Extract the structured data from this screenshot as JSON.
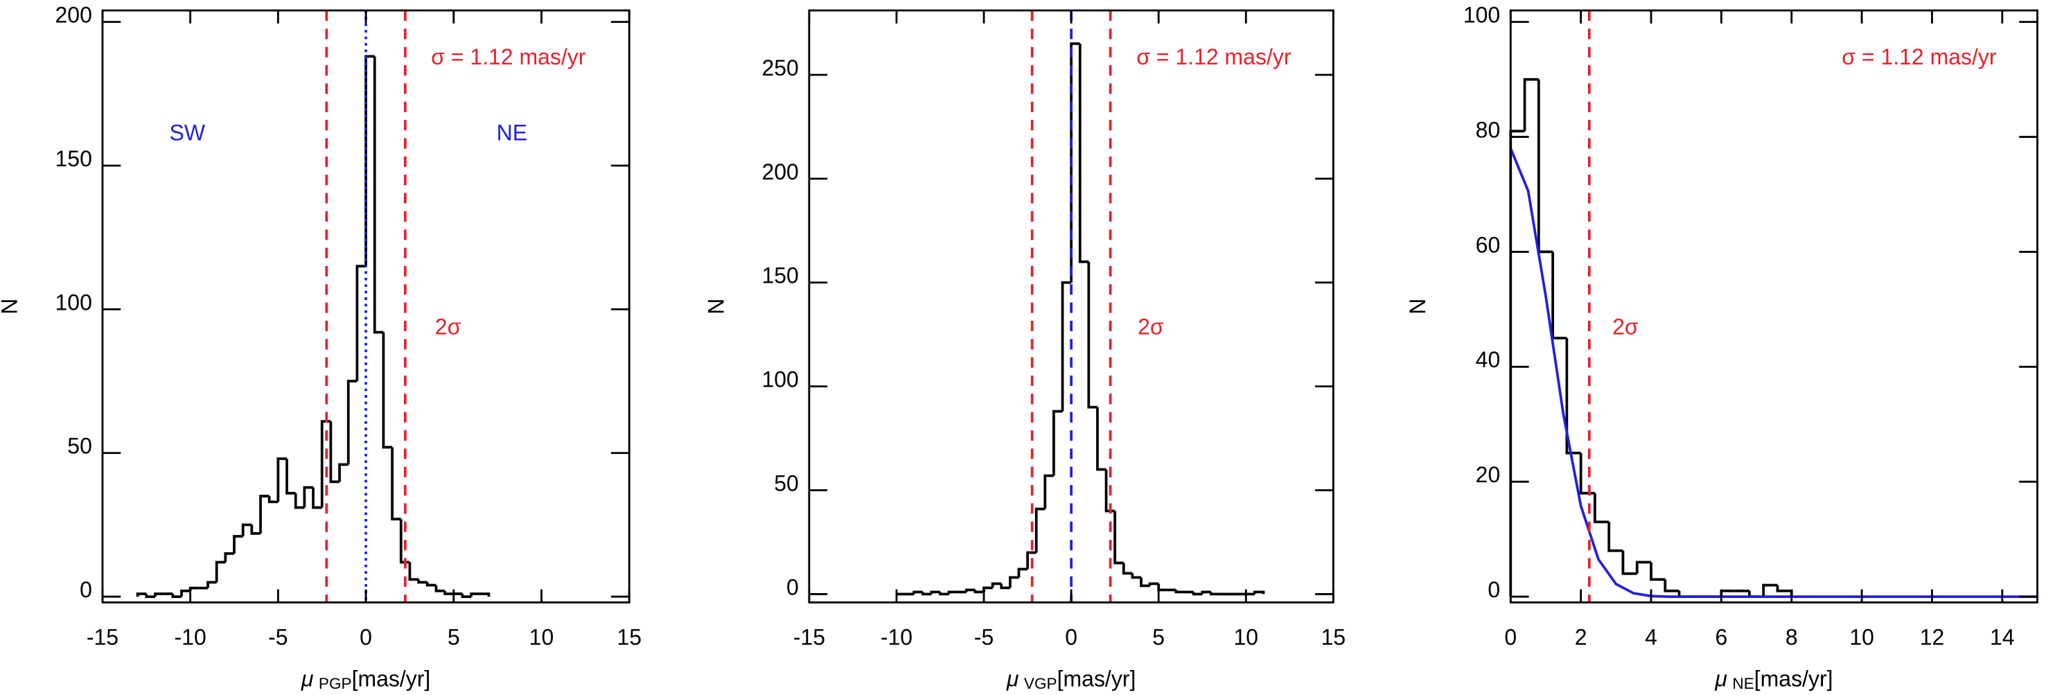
{
  "chart_data": [
    {
      "type": "histogram",
      "ylabel": "N",
      "xlabel": {
        "symbol": "μ",
        "sub": "PGP",
        "unit": "[mas/yr]"
      },
      "bins": [
        -13,
        -12.5,
        -12,
        -11.5,
        -11,
        -10.5,
        -10,
        -9.5,
        -9,
        -8.5,
        -8,
        -7.5,
        -7,
        -6.5,
        -6,
        -5.5,
        -5,
        -4.5,
        -4,
        -3.5,
        -3,
        -2.5,
        -2,
        -1.5,
        -1,
        -0.5,
        0,
        0.5,
        1,
        1.5,
        2,
        2.5,
        3,
        3.5,
        4,
        4.5,
        5,
        5.5,
        6,
        6.5,
        7
      ],
      "values": [
        1,
        0,
        1,
        1,
        0,
        2,
        3,
        3,
        5,
        12,
        15,
        21,
        25,
        22,
        35,
        33,
        48,
        36,
        31,
        38,
        31,
        61,
        40,
        46,
        75,
        115,
        188,
        92,
        52,
        27,
        12,
        6,
        5,
        4,
        2,
        1,
        1,
        0,
        1,
        1
      ],
      "color": "#000000",
      "xlim": [
        -15,
        15
      ],
      "xticks": [
        -15,
        -10,
        -5,
        0,
        5,
        10,
        15
      ],
      "ylim": [
        -2,
        204
      ],
      "yticks": [
        0,
        50,
        100,
        150,
        200
      ],
      "vlines": [
        {
          "x": -2.24,
          "color": "#e8202a",
          "style": "dashed"
        },
        {
          "x": 2.24,
          "color": "#e8202a",
          "style": "dashed"
        },
        {
          "x": 0,
          "color": "#2020e0",
          "style": "dotted"
        }
      ],
      "annotations": [
        {
          "text": "σ = 1.12 mas/yr",
          "color": "#e8202a"
        },
        {
          "text": "2σ",
          "color": "#e8202a"
        },
        {
          "text": "SW",
          "color": "#2020e0"
        },
        {
          "text": "NE",
          "color": "#2020e0"
        }
      ]
    },
    {
      "type": "histogram",
      "ylabel": "N",
      "xlabel": {
        "symbol": "μ",
        "sub": "VGP",
        "unit": "[mas/yr]"
      },
      "bins": [
        -10,
        -9.5,
        -9,
        -8.5,
        -8,
        -7.5,
        -7,
        -6.5,
        -6,
        -5.5,
        -5,
        -4.5,
        -4,
        -3.5,
        -3,
        -2.5,
        -2,
        -1.5,
        -1,
        -0.5,
        0,
        0.5,
        1,
        1.5,
        2,
        2.5,
        3,
        3.5,
        4,
        4.5,
        5,
        5.5,
        6,
        6.5,
        7,
        7.5,
        8,
        8.5,
        9,
        9.5,
        10,
        10.5,
        11
      ],
      "values": [
        0,
        0,
        1,
        0,
        1,
        0,
        1,
        1,
        2,
        1,
        3,
        5,
        3,
        8,
        12,
        20,
        41,
        57,
        88,
        150,
        265,
        160,
        90,
        60,
        40,
        15,
        10,
        8,
        4,
        5,
        2,
        2,
        1,
        1,
        0,
        1,
        0,
        0,
        0,
        0,
        0,
        1
      ],
      "color": "#000000",
      "xlim": [
        -15,
        15
      ],
      "xticks": [
        -15,
        -10,
        -5,
        0,
        5,
        10,
        15
      ],
      "ylim": [
        -4,
        281
      ],
      "yticks": [
        0,
        50,
        100,
        150,
        200,
        250
      ],
      "vlines": [
        {
          "x": -2.24,
          "color": "#e8202a",
          "style": "dashed"
        },
        {
          "x": 2.24,
          "color": "#e8202a",
          "style": "dashed"
        },
        {
          "x": 0,
          "color": "#2020e0",
          "style": "dashed"
        }
      ],
      "annotations": [
        {
          "text": "σ = 1.12 mas/yr",
          "color": "#e8202a"
        },
        {
          "text": "2σ",
          "color": "#e8202a"
        }
      ]
    },
    {
      "type": "histogram",
      "ylabel": "N",
      "xlabel": {
        "symbol": "μ",
        "sub": "NE",
        "unit": "[mas/yr]"
      },
      "bins": [
        0,
        0.4,
        0.8,
        1.2,
        1.6,
        2.0,
        2.4,
        2.8,
        3.2,
        3.6,
        4.0,
        4.4,
        4.8,
        5.2,
        5.6,
        6.0,
        6.4,
        6.8,
        7.2,
        7.6,
        8.0
      ],
      "values": [
        81,
        90,
        60,
        45,
        25,
        18,
        13,
        8,
        4,
        6,
        3,
        1,
        0,
        0,
        0,
        1,
        1,
        0,
        2,
        1
      ],
      "color": "#000000",
      "xlim": [
        0,
        15
      ],
      "xticks": [
        0,
        2,
        4,
        6,
        8,
        10,
        12,
        14
      ],
      "ylim": [
        -1,
        102
      ],
      "yticks": [
        0,
        20,
        40,
        60,
        80,
        100
      ],
      "fit": {
        "color": "#2020e0",
        "x": [
          0,
          0.5,
          1,
          1.5,
          2,
          2.5,
          3,
          3.5,
          4,
          4.5,
          5,
          15
        ],
        "values": [
          78,
          70.6,
          52.3,
          31.8,
          15.8,
          6.5,
          2.2,
          0.6,
          0.1,
          0,
          0,
          0
        ]
      },
      "vlines": [
        {
          "x": 2.24,
          "color": "#e8202a",
          "style": "dashed"
        }
      ],
      "annotations": [
        {
          "text": "σ = 1.12 mas/yr",
          "color": "#e8202a"
        },
        {
          "text": "2σ",
          "color": "#e8202a"
        }
      ]
    }
  ]
}
